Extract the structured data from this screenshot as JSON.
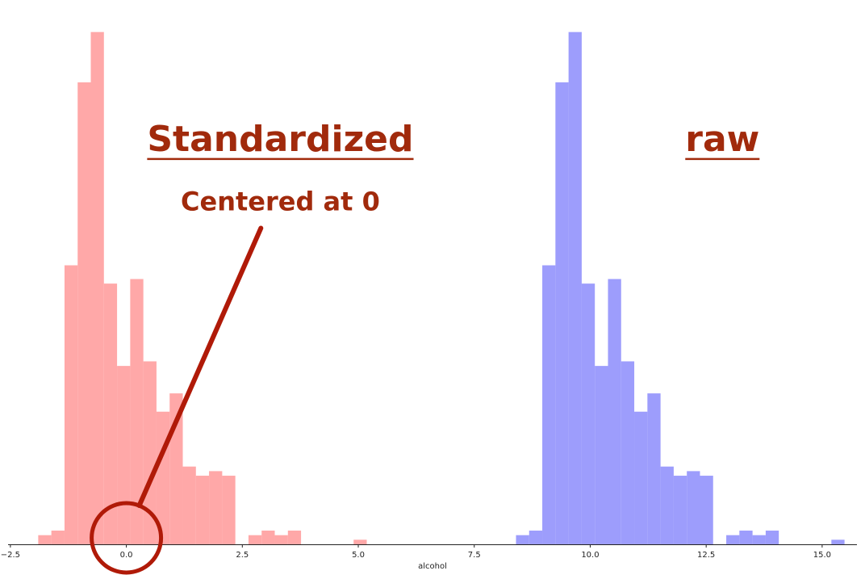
{
  "chart_data": {
    "type": "histogram",
    "xlabel": "alcohol",
    "xlim": [
      -2.55,
      15.75
    ],
    "ylim": [
      0,
      112
    ],
    "xticks": [
      -2.5,
      0.0,
      2.5,
      5.0,
      7.5,
      10.0,
      12.5,
      15.0
    ],
    "xtick_labels": [
      "−2.5",
      "0.0",
      "2.5",
      "5.0",
      "7.5",
      "10.0",
      "12.5",
      "15.0"
    ],
    "bin_width": 0.2833,
    "series": [
      {
        "color": "#ff9999",
        "bin_start": -1.9,
        "counts": [
          2,
          3,
          61,
          101,
          112,
          57,
          39,
          58,
          40,
          29,
          33,
          17,
          15,
          16,
          15,
          0,
          2,
          3,
          2,
          3,
          0,
          0,
          0,
          0,
          1
        ],
        "alpha": 0.85
      },
      {
        "color": "#8c8cfb",
        "bin_start": 8.4,
        "counts": [
          2,
          3,
          61,
          101,
          112,
          57,
          39,
          58,
          40,
          29,
          33,
          17,
          15,
          16,
          15,
          0,
          2,
          3,
          2,
          3,
          0,
          0,
          0,
          0,
          1
        ],
        "alpha": 0.85
      }
    ],
    "annotations": [
      {
        "text": "Standardized",
        "x": 3.32,
        "y": 86,
        "underlined": true
      },
      {
        "text": "raw",
        "x": 12.85,
        "y": 86,
        "underlined": true
      },
      {
        "text": "Centered at 0",
        "x": 3.32,
        "y": 73
      }
    ],
    "grid": false
  },
  "colors": {
    "annotation": "#a12a0c",
    "arrow": "#b01a08"
  }
}
